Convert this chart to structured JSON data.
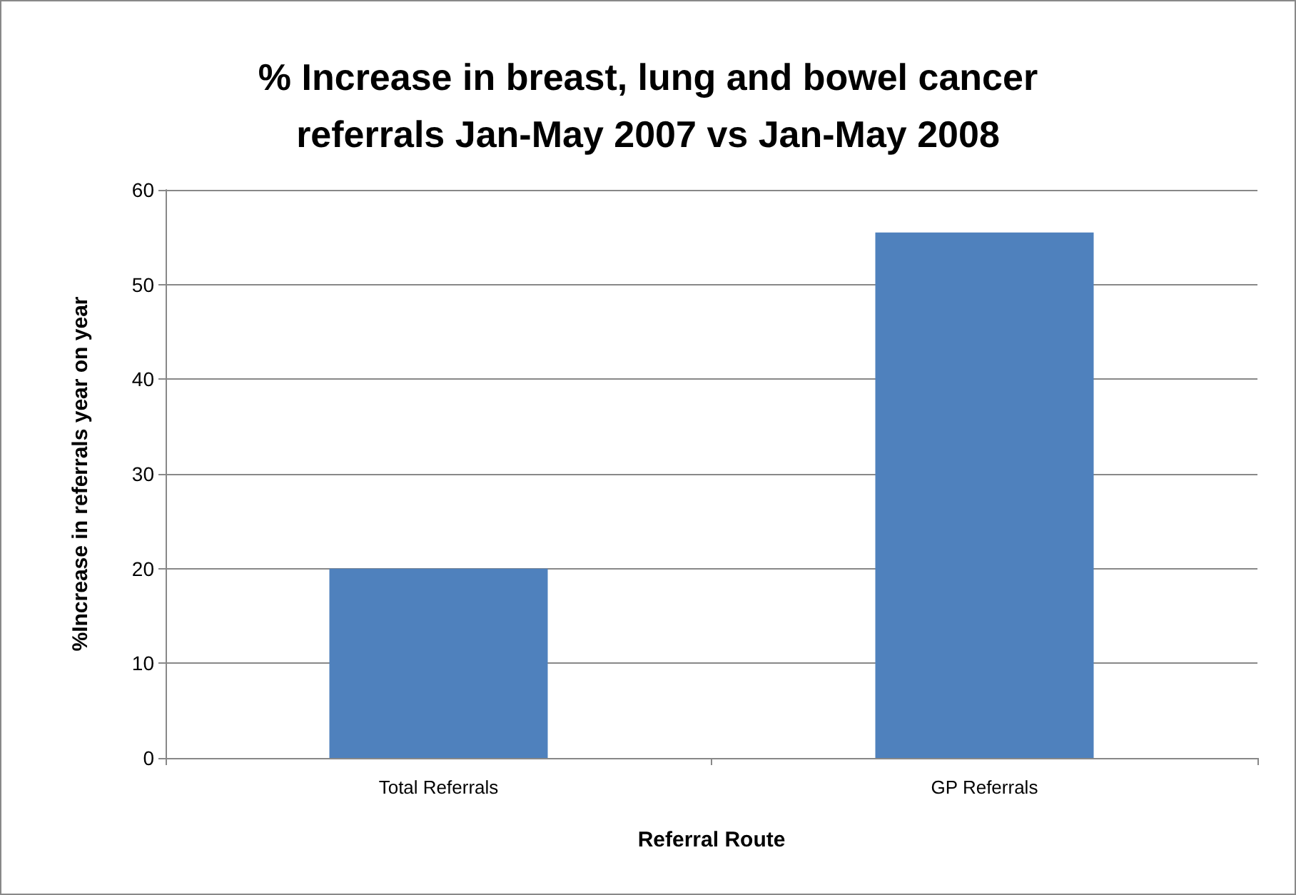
{
  "chart_data": {
    "type": "bar",
    "title": "% Increase in breast, lung and bowel cancer\nreferrals Jan-May 2007 vs Jan-May 2008",
    "xlabel": "Referral Route",
    "ylabel": "%Increase in referrals year on year",
    "categories": [
      "Total Referrals",
      "GP Referrals"
    ],
    "values": [
      20,
      55.5
    ],
    "color": "#4f81bd",
    "ylim": [
      0,
      60
    ],
    "yticks": [
      0,
      10,
      20,
      30,
      40,
      50,
      60
    ],
    "grid": "y"
  }
}
